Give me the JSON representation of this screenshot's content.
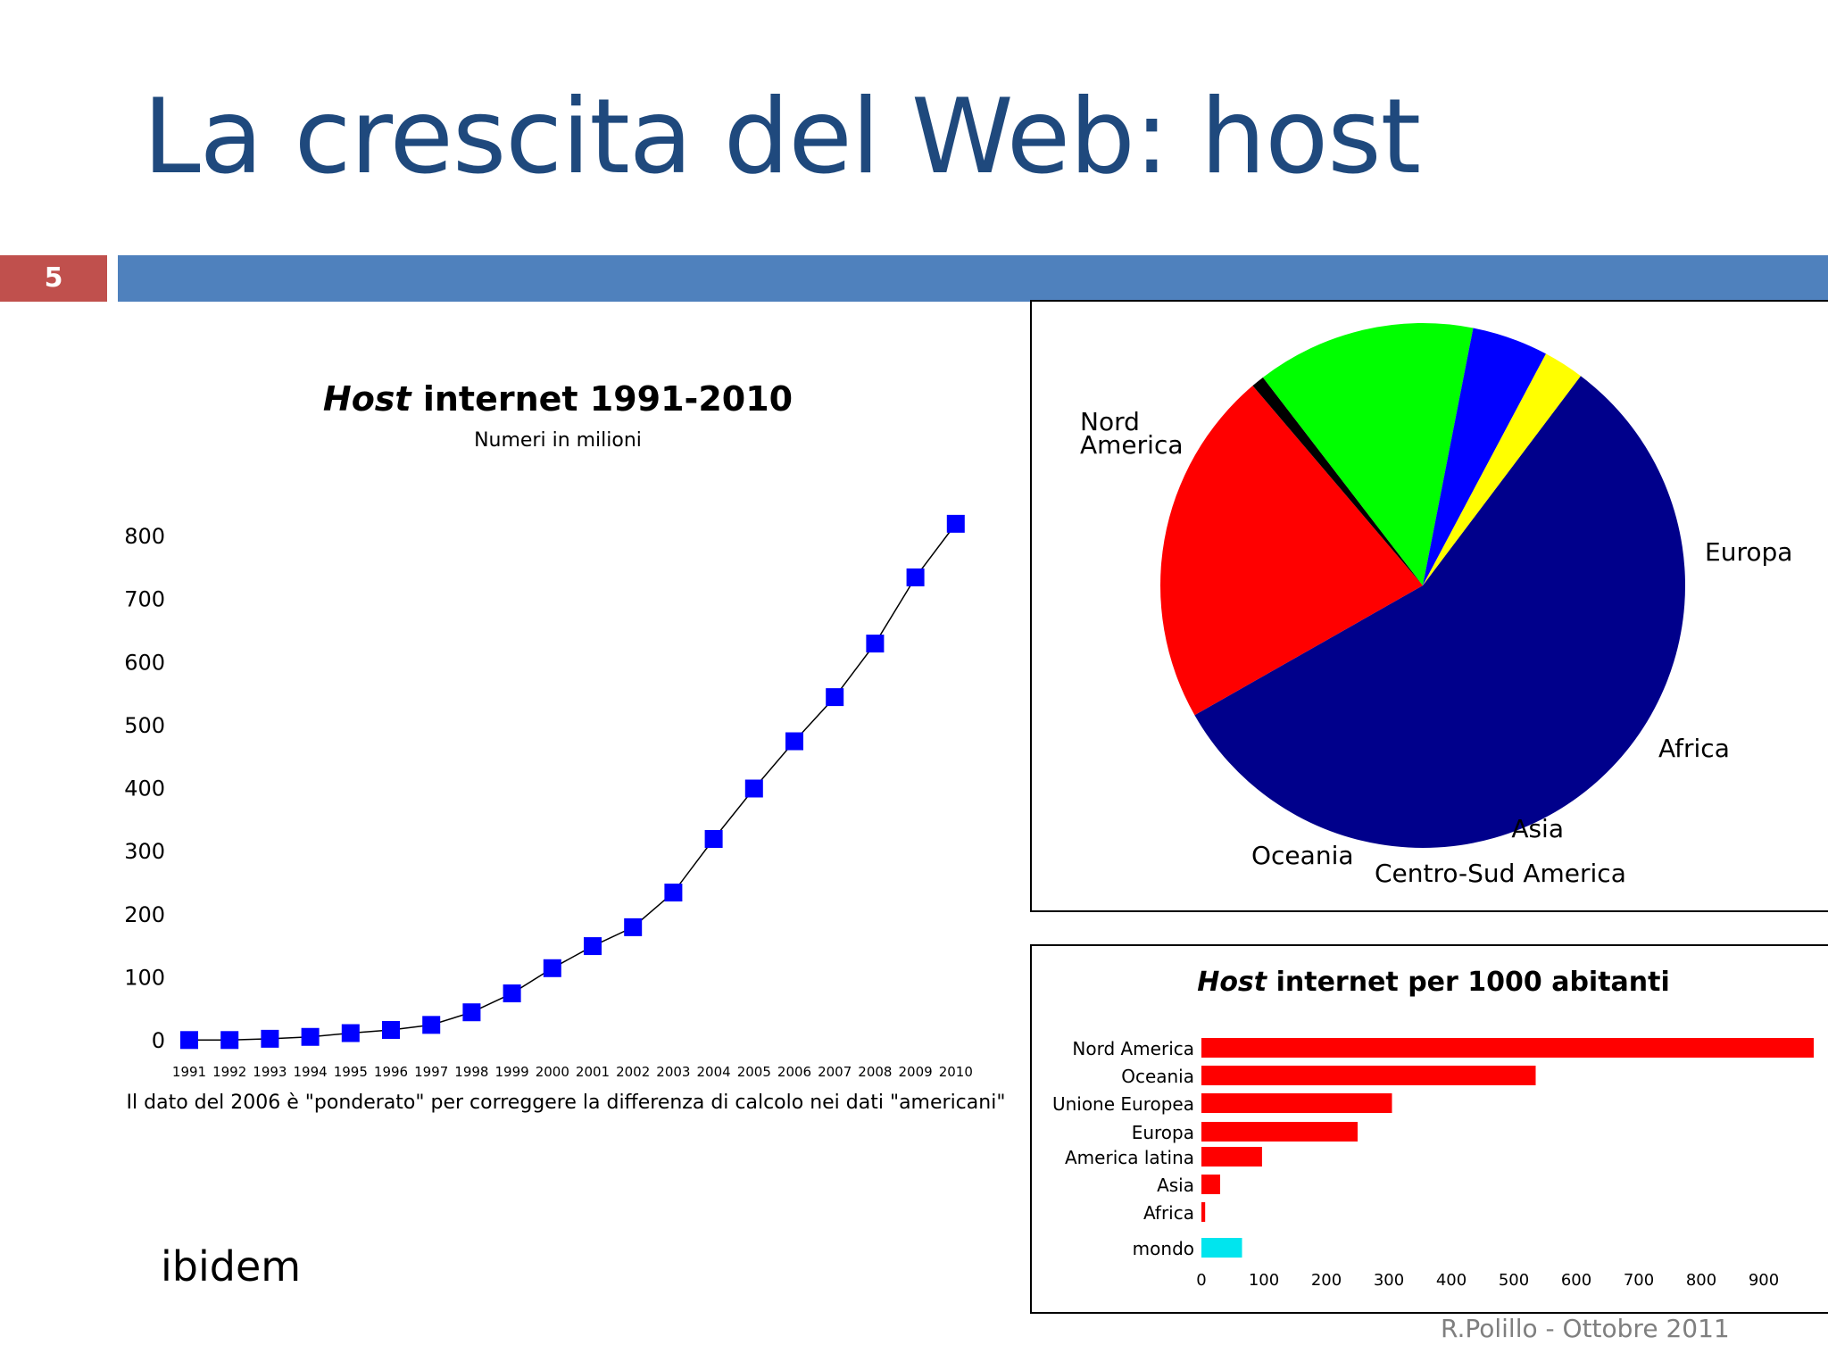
{
  "slide": {
    "title": "La crescita del Web: host",
    "number": "5",
    "note": "ibidem",
    "footer": "R.Polillo - Ottobre 2011"
  },
  "colors": {
    "title": "#1f497d",
    "header_bar": "#4f81bd",
    "number_box": "#c0504d",
    "line_marker": "#0000ff",
    "bar": "#ff0000",
    "bar_world": "#00e5ee"
  },
  "chart_data": [
    {
      "type": "line",
      "title_em": "Host",
      "title_rest": " internet 1991-2010",
      "subtitle": "Numeri in milioni",
      "caption": "Il dato del 2006 è \"ponderato\" per correggere la differenza di calcolo nei dati \"americani\"",
      "x": [
        "1991",
        "1992",
        "1993",
        "1994",
        "1995",
        "1996",
        "1997",
        "1998",
        "1999",
        "2000",
        "2001",
        "2002",
        "2003",
        "2004",
        "2005",
        "2006",
        "2007",
        "2008",
        "2009",
        "2010"
      ],
      "series": [
        {
          "values": [
            1,
            1,
            3,
            6,
            12,
            17,
            25,
            45,
            75,
            115,
            150,
            180,
            235,
            320,
            400,
            475,
            545,
            630,
            735,
            820
          ]
        }
      ],
      "yticks": [
        0,
        100,
        200,
        300,
        400,
        500,
        600,
        700,
        800
      ],
      "ylim": [
        0,
        800
      ],
      "grid": false
    },
    {
      "type": "pie",
      "slices": [
        {
          "label": "Nord\nAmerica",
          "value": 56.5,
          "color": "#00008b"
        },
        {
          "label": "Europa",
          "value": 22.0,
          "color": "#ff0000"
        },
        {
          "label": "Africa",
          "value": 0.8,
          "color": "#000000"
        },
        {
          "label": "Asia",
          "value": 13.5,
          "color": "#00ff00"
        },
        {
          "label": "Centro-Sud America",
          "value": 4.7,
          "color": "#0000ff"
        },
        {
          "label": "Oceania",
          "value": 2.5,
          "color": "#ffff00"
        }
      ],
      "legend": "none"
    },
    {
      "type": "bar",
      "orientation": "horizontal",
      "title_em": "Host",
      "title_rest": " internet per 1000 abitanti",
      "categories": [
        "Nord America",
        "Oceania",
        "Unione Europea",
        "Europa",
        "America latina",
        "Asia",
        "Africa",
        "mondo"
      ],
      "values": [
        980,
        535,
        305,
        250,
        97,
        30,
        6,
        65
      ],
      "xticks": [
        0,
        100,
        200,
        300,
        400,
        500,
        600,
        700,
        800,
        900
      ],
      "xlim": [
        0,
        980
      ]
    }
  ]
}
